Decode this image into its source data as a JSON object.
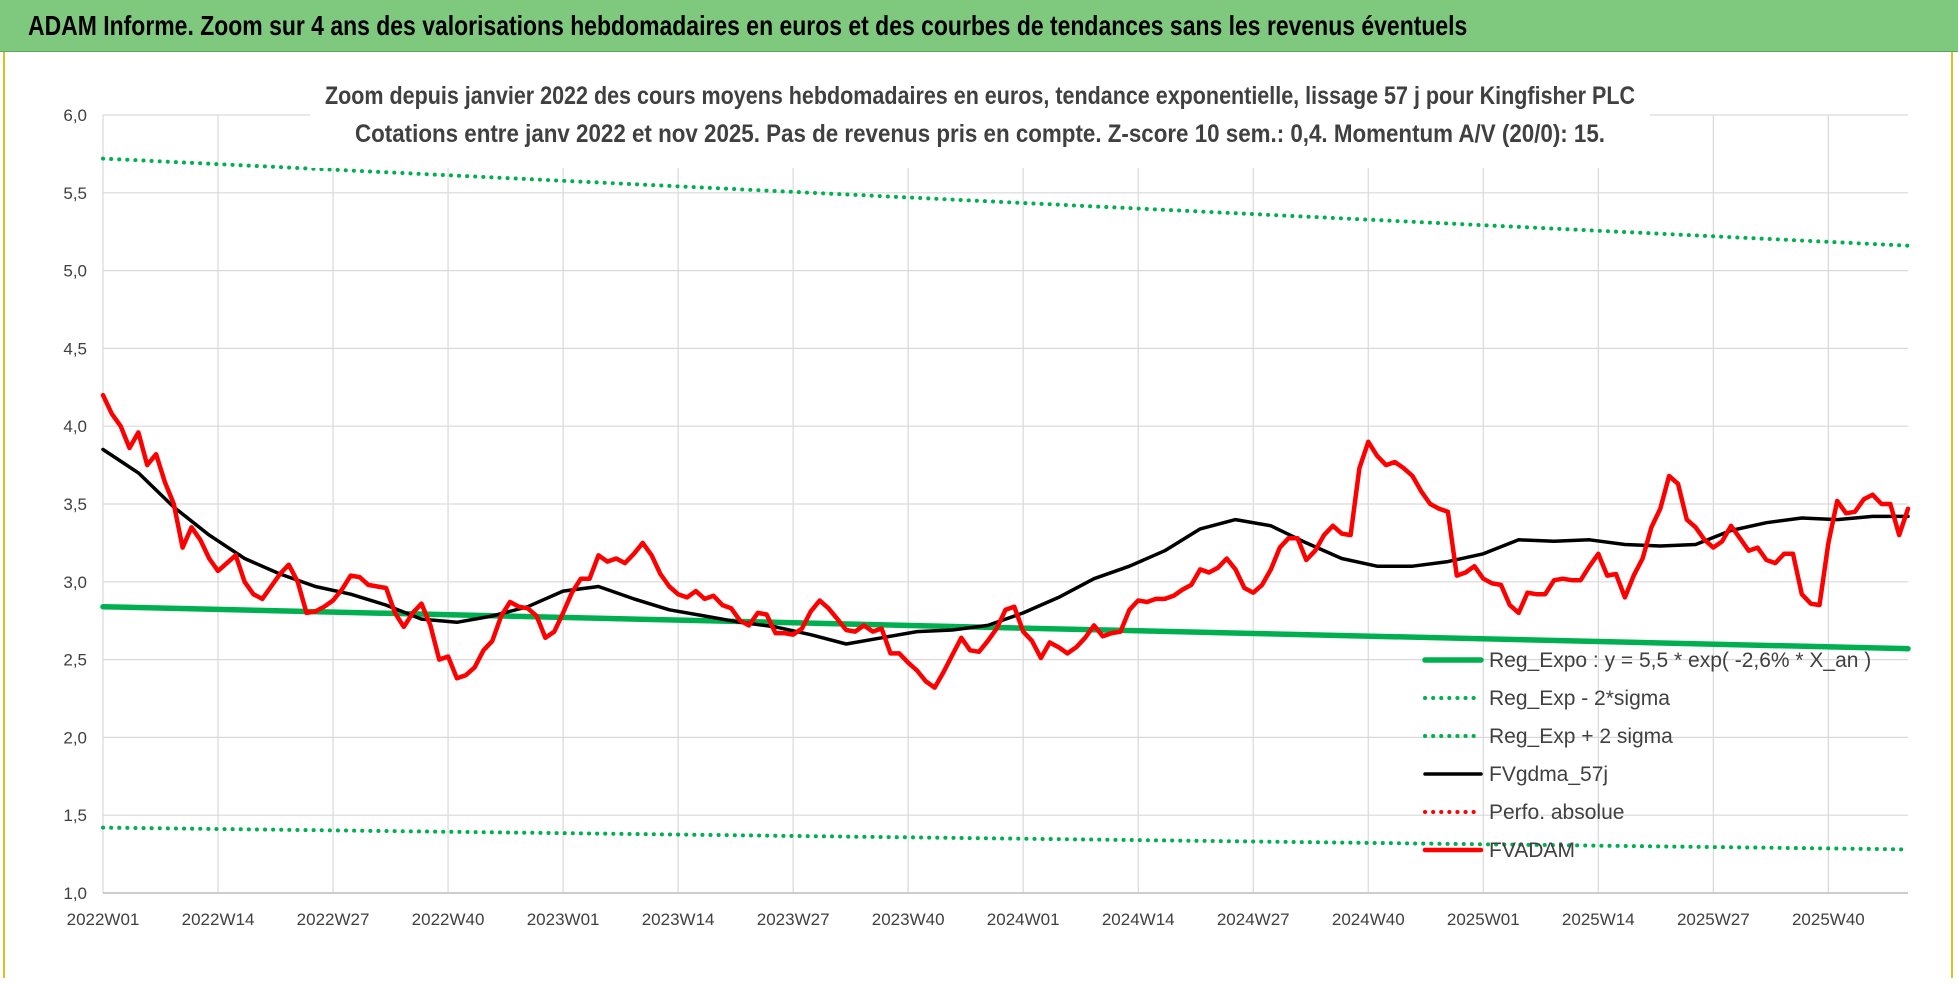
{
  "banner": {
    "title": "ADAM Informe. Zoom sur 4 ans des valorisations hebdomadaires en euros et des courbes de tendances sans les revenus éventuels",
    "color": "#7fc97f"
  },
  "chart_data": {
    "type": "line",
    "title": "Zoom depuis janvier 2022 des cours moyens hebdomadaires en euros, tendance exponentielle, lissage 57 j pour Kingfisher PLC",
    "subtitle": "Cotations entre janv 2022 et nov 2025. Pas de revenus pris en compte. Z-score 10 sem.: 0,4. Momentum A/V (20/0): 15.",
    "xlabel": "",
    "ylabel": "",
    "ylim": [
      1.0,
      6.0
    ],
    "yticks": [
      "1,0",
      "1,5",
      "2,0",
      "2,5",
      "3,0",
      "3,5",
      "4,0",
      "4,5",
      "5,0",
      "5,5",
      "6,0"
    ],
    "xticks": [
      "2022W01",
      "2022W14",
      "2022W27",
      "2022W40",
      "2023W01",
      "2023W14",
      "2023W27",
      "2023W40",
      "2024W01",
      "2024W14",
      "2024W27",
      "2024W40",
      "2025W01",
      "2025W14",
      "2025W27",
      "2025W40"
    ],
    "x_range_weeks": [
      0,
      204
    ],
    "grid": true,
    "legend_position": "bottom-right",
    "series": [
      {
        "name": "Reg_Expo : y = 5,5 * exp( -2,6% * X_an )",
        "color": "#00b050",
        "style": "solid-thick",
        "x": [
          0,
          204
        ],
        "y": [
          2.84,
          2.57
        ]
      },
      {
        "name": "Reg_Exp - 2*sigma",
        "color": "#00b050",
        "style": "dotted",
        "x": [
          0,
          204
        ],
        "y": [
          1.42,
          1.28
        ]
      },
      {
        "name": "Reg_Exp + 2 sigma",
        "color": "#00b050",
        "style": "dotted",
        "x": [
          0,
          204
        ],
        "y": [
          5.72,
          5.16
        ]
      },
      {
        "name": "FVgdma_57j",
        "color": "#000000",
        "style": "solid",
        "x": [
          0,
          4,
          8,
          12,
          16,
          20,
          24,
          28,
          32,
          36,
          40,
          44,
          48,
          52,
          56,
          60,
          64,
          68,
          72,
          76,
          80,
          84,
          88,
          92,
          96,
          100,
          104,
          108,
          112,
          116,
          120,
          124,
          128,
          132,
          136,
          140,
          144,
          148,
          152,
          156,
          160,
          164,
          168,
          172,
          176,
          180,
          184,
          188,
          192,
          196,
          200,
          204
        ],
        "y": [
          3.85,
          3.7,
          3.48,
          3.3,
          3.15,
          3.05,
          2.97,
          2.92,
          2.85,
          2.76,
          2.74,
          2.78,
          2.84,
          2.94,
          2.97,
          2.89,
          2.82,
          2.78,
          2.74,
          2.71,
          2.66,
          2.6,
          2.64,
          2.68,
          2.69,
          2.72,
          2.8,
          2.9,
          3.02,
          3.1,
          3.2,
          3.34,
          3.4,
          3.36,
          3.25,
          3.15,
          3.1,
          3.1,
          3.13,
          3.18,
          3.27,
          3.26,
          3.27,
          3.24,
          3.23,
          3.24,
          3.33,
          3.38,
          3.41,
          3.4,
          3.42,
          3.42
        ]
      },
      {
        "name": "Perfo. absolue",
        "color": "#ff0000",
        "style": "dotted",
        "x": [],
        "y": []
      },
      {
        "name": "FVADAM",
        "color": "#ff0000",
        "style": "solid-thick",
        "x": [
          0,
          1,
          2,
          3,
          4,
          5,
          6,
          7,
          8,
          9,
          10,
          11,
          12,
          13,
          14,
          15,
          16,
          17,
          18,
          19,
          20,
          21,
          22,
          23,
          24,
          25,
          26,
          27,
          28,
          29,
          30,
          31,
          32,
          33,
          34,
          35,
          36,
          37,
          38,
          39,
          40,
          41,
          42,
          43,
          44,
          45,
          46,
          47,
          48,
          49,
          50,
          51,
          52,
          53,
          54,
          55,
          56,
          57,
          58,
          59,
          60,
          61,
          62,
          63,
          64,
          65,
          66,
          67,
          68,
          69,
          70,
          71,
          72,
          73,
          74,
          75,
          76,
          77,
          78,
          79,
          80,
          81,
          82,
          83,
          84,
          85,
          86,
          87,
          88,
          89,
          90,
          91,
          92,
          93,
          94,
          95,
          96,
          97,
          98,
          99,
          100,
          101,
          102,
          103,
          104,
          105,
          106,
          107,
          108,
          109,
          110,
          111,
          112,
          113,
          114,
          115,
          116,
          117,
          118,
          119,
          120,
          121,
          122,
          123,
          124,
          125,
          126,
          127,
          128,
          129,
          130,
          131,
          132,
          133,
          134,
          135,
          136,
          137,
          138,
          139,
          140,
          141,
          142,
          143,
          144,
          145,
          146,
          147,
          148,
          149,
          150,
          151,
          152,
          153,
          154,
          155,
          156,
          157,
          158,
          159,
          160,
          161,
          162,
          163,
          164,
          165,
          166,
          167,
          168,
          169,
          170,
          171,
          172,
          173,
          174,
          175,
          176,
          177,
          178,
          179,
          180,
          181,
          182,
          183,
          184,
          185,
          186,
          187,
          188,
          189,
          190,
          191,
          192,
          193,
          194,
          195,
          196,
          197,
          198,
          199,
          200,
          201,
          202,
          203,
          204
        ],
        "y": [
          4.2,
          4.08,
          4.0,
          3.86,
          3.96,
          3.75,
          3.82,
          3.64,
          3.5,
          3.22,
          3.35,
          3.27,
          3.15,
          3.07,
          3.12,
          3.17,
          3.0,
          2.92,
          2.89,
          2.97,
          3.05,
          3.11,
          3.0,
          2.8,
          2.81,
          2.84,
          2.88,
          2.95,
          3.04,
          3.03,
          2.98,
          2.97,
          2.96,
          2.8,
          2.71,
          2.8,
          2.86,
          2.72,
          2.5,
          2.52,
          2.38,
          2.4,
          2.45,
          2.56,
          2.62,
          2.78,
          2.87,
          2.84,
          2.83,
          2.78,
          2.64,
          2.68,
          2.8,
          2.93,
          3.02,
          3.02,
          3.17,
          3.13,
          3.15,
          3.12,
          3.18,
          3.25,
          3.17,
          3.05,
          2.97,
          2.92,
          2.9,
          2.94,
          2.89,
          2.91,
          2.85,
          2.83,
          2.75,
          2.72,
          2.8,
          2.79,
          2.67,
          2.67,
          2.66,
          2.7,
          2.81,
          2.88,
          2.83,
          2.76,
          2.69,
          2.68,
          2.72,
          2.68,
          2.7,
          2.54,
          2.54,
          2.48,
          2.43,
          2.36,
          2.32,
          2.42,
          2.53,
          2.64,
          2.56,
          2.55,
          2.62,
          2.7,
          2.82,
          2.84,
          2.68,
          2.62,
          2.51,
          2.61,
          2.58,
          2.54,
          2.58,
          2.64,
          2.72,
          2.65,
          2.67,
          2.68,
          2.82,
          2.88,
          2.87,
          2.89,
          2.89,
          2.91,
          2.95,
          2.98,
          3.08,
          3.06,
          3.09,
          3.15,
          3.08,
          2.96,
          2.93,
          2.98,
          3.08,
          3.22,
          3.28,
          3.28,
          3.14,
          3.2,
          3.3,
          3.36,
          3.31,
          3.3,
          3.73,
          3.9,
          3.81,
          3.75,
          3.77,
          3.73,
          3.68,
          3.58,
          3.5,
          3.47,
          3.45,
          3.04,
          3.06,
          3.1,
          3.02,
          2.99,
          2.98,
          2.85,
          2.8,
          2.93,
          2.92,
          2.92,
          3.01,
          3.02,
          3.01,
          3.01,
          3.1,
          3.18,
          3.04,
          3.05,
          2.9,
          3.04,
          3.15,
          3.35,
          3.47,
          3.68,
          3.63,
          3.4,
          3.35,
          3.27,
          3.22,
          3.26,
          3.36,
          3.28,
          3.2,
          3.22,
          3.14,
          3.12,
          3.18,
          3.18,
          2.92,
          2.86,
          2.85,
          3.25,
          3.52,
          3.44,
          3.45,
          3.53,
          3.56,
          3.5,
          3.5,
          3.3,
          3.47
        ]
      }
    ]
  }
}
